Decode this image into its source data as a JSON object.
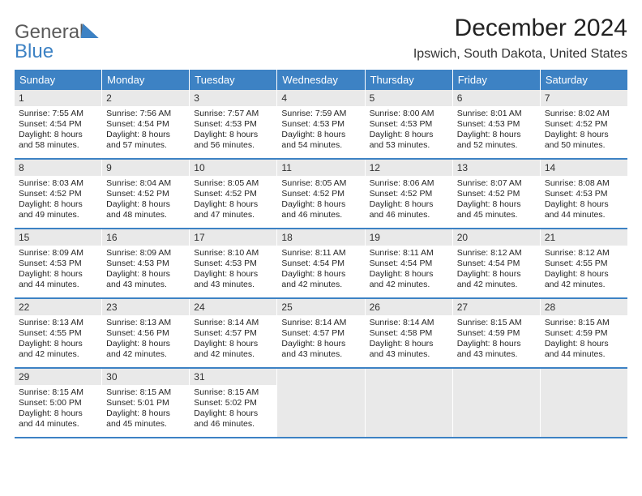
{
  "logo": {
    "word1": "General",
    "word2": "Blue"
  },
  "title": "December 2024",
  "location": "Ipswich, South Dakota, United States",
  "colors": {
    "header_bg": "#3d82c4",
    "header_fg": "#ffffff",
    "shade": "#e9e9e9",
    "rule": "#3d82c4",
    "text": "#262626",
    "page_bg": "#ffffff"
  },
  "font": {
    "family": "Arial",
    "title_size_pt": 22,
    "location_size_pt": 12,
    "dayhead_size_pt": 10,
    "body_size_pt": 8
  },
  "day_headers": [
    "Sunday",
    "Monday",
    "Tuesday",
    "Wednesday",
    "Thursday",
    "Friday",
    "Saturday"
  ],
  "weeks": [
    [
      {
        "n": "1",
        "sunrise": "7:55 AM",
        "sunset": "4:54 PM",
        "daylight": "8 hours and 58 minutes."
      },
      {
        "n": "2",
        "sunrise": "7:56 AM",
        "sunset": "4:54 PM",
        "daylight": "8 hours and 57 minutes."
      },
      {
        "n": "3",
        "sunrise": "7:57 AM",
        "sunset": "4:53 PM",
        "daylight": "8 hours and 56 minutes."
      },
      {
        "n": "4",
        "sunrise": "7:59 AM",
        "sunset": "4:53 PM",
        "daylight": "8 hours and 54 minutes."
      },
      {
        "n": "5",
        "sunrise": "8:00 AM",
        "sunset": "4:53 PM",
        "daylight": "8 hours and 53 minutes."
      },
      {
        "n": "6",
        "sunrise": "8:01 AM",
        "sunset": "4:53 PM",
        "daylight": "8 hours and 52 minutes."
      },
      {
        "n": "7",
        "sunrise": "8:02 AM",
        "sunset": "4:52 PM",
        "daylight": "8 hours and 50 minutes."
      }
    ],
    [
      {
        "n": "8",
        "sunrise": "8:03 AM",
        "sunset": "4:52 PM",
        "daylight": "8 hours and 49 minutes."
      },
      {
        "n": "9",
        "sunrise": "8:04 AM",
        "sunset": "4:52 PM",
        "daylight": "8 hours and 48 minutes."
      },
      {
        "n": "10",
        "sunrise": "8:05 AM",
        "sunset": "4:52 PM",
        "daylight": "8 hours and 47 minutes."
      },
      {
        "n": "11",
        "sunrise": "8:05 AM",
        "sunset": "4:52 PM",
        "daylight": "8 hours and 46 minutes."
      },
      {
        "n": "12",
        "sunrise": "8:06 AM",
        "sunset": "4:52 PM",
        "daylight": "8 hours and 46 minutes."
      },
      {
        "n": "13",
        "sunrise": "8:07 AM",
        "sunset": "4:52 PM",
        "daylight": "8 hours and 45 minutes."
      },
      {
        "n": "14",
        "sunrise": "8:08 AM",
        "sunset": "4:53 PM",
        "daylight": "8 hours and 44 minutes."
      }
    ],
    [
      {
        "n": "15",
        "sunrise": "8:09 AM",
        "sunset": "4:53 PM",
        "daylight": "8 hours and 44 minutes."
      },
      {
        "n": "16",
        "sunrise": "8:09 AM",
        "sunset": "4:53 PM",
        "daylight": "8 hours and 43 minutes."
      },
      {
        "n": "17",
        "sunrise": "8:10 AM",
        "sunset": "4:53 PM",
        "daylight": "8 hours and 43 minutes."
      },
      {
        "n": "18",
        "sunrise": "8:11 AM",
        "sunset": "4:54 PM",
        "daylight": "8 hours and 42 minutes."
      },
      {
        "n": "19",
        "sunrise": "8:11 AM",
        "sunset": "4:54 PM",
        "daylight": "8 hours and 42 minutes."
      },
      {
        "n": "20",
        "sunrise": "8:12 AM",
        "sunset": "4:54 PM",
        "daylight": "8 hours and 42 minutes."
      },
      {
        "n": "21",
        "sunrise": "8:12 AM",
        "sunset": "4:55 PM",
        "daylight": "8 hours and 42 minutes."
      }
    ],
    [
      {
        "n": "22",
        "sunrise": "8:13 AM",
        "sunset": "4:55 PM",
        "daylight": "8 hours and 42 minutes."
      },
      {
        "n": "23",
        "sunrise": "8:13 AM",
        "sunset": "4:56 PM",
        "daylight": "8 hours and 42 minutes."
      },
      {
        "n": "24",
        "sunrise": "8:14 AM",
        "sunset": "4:57 PM",
        "daylight": "8 hours and 42 minutes."
      },
      {
        "n": "25",
        "sunrise": "8:14 AM",
        "sunset": "4:57 PM",
        "daylight": "8 hours and 43 minutes."
      },
      {
        "n": "26",
        "sunrise": "8:14 AM",
        "sunset": "4:58 PM",
        "daylight": "8 hours and 43 minutes."
      },
      {
        "n": "27",
        "sunrise": "8:15 AM",
        "sunset": "4:59 PM",
        "daylight": "8 hours and 43 minutes."
      },
      {
        "n": "28",
        "sunrise": "8:15 AM",
        "sunset": "4:59 PM",
        "daylight": "8 hours and 44 minutes."
      }
    ],
    [
      {
        "n": "29",
        "sunrise": "8:15 AM",
        "sunset": "5:00 PM",
        "daylight": "8 hours and 44 minutes."
      },
      {
        "n": "30",
        "sunrise": "8:15 AM",
        "sunset": "5:01 PM",
        "daylight": "8 hours and 45 minutes."
      },
      {
        "n": "31",
        "sunrise": "8:15 AM",
        "sunset": "5:02 PM",
        "daylight": "8 hours and 46 minutes."
      },
      null,
      null,
      null,
      null
    ]
  ],
  "labels": {
    "sunrise": "Sunrise:",
    "sunset": "Sunset:",
    "daylight": "Daylight:"
  }
}
